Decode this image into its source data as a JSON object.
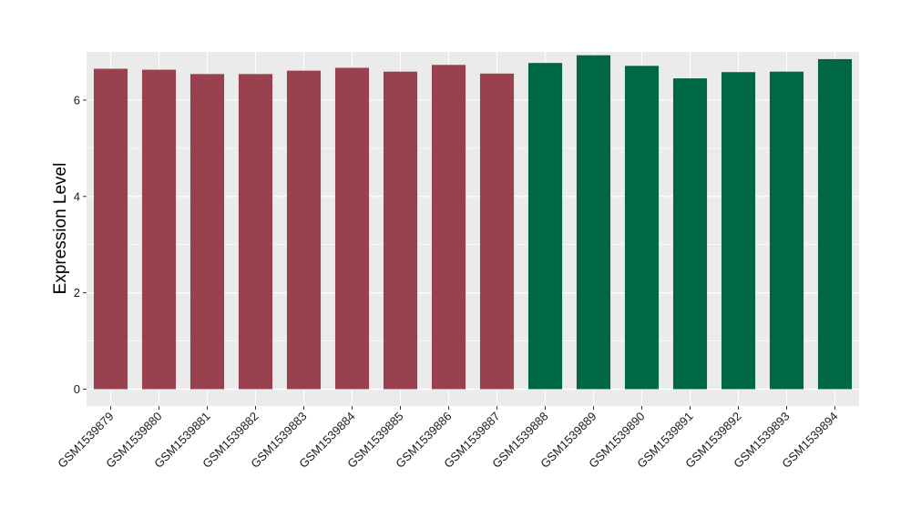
{
  "chart_data": {
    "type": "bar",
    "title": "",
    "xlabel": "",
    "ylabel": "Expression Level",
    "ylim": [
      -0.35,
      7.0
    ],
    "yticks": [
      0,
      2,
      4,
      6
    ],
    "grid": true,
    "legend": "none",
    "categories": [
      "GSM1539879",
      "GSM1539880",
      "GSM1539881",
      "GSM1539882",
      "GSM1539883",
      "GSM1539884",
      "GSM1539885",
      "GSM1539886",
      "GSM1539887",
      "GSM1539888",
      "GSM1539889",
      "GSM1539890",
      "GSM1539891",
      "GSM1539892",
      "GSM1539893",
      "GSM1539894"
    ],
    "values": [
      6.65,
      6.63,
      6.54,
      6.54,
      6.61,
      6.67,
      6.59,
      6.73,
      6.55,
      6.77,
      6.93,
      6.71,
      6.45,
      6.58,
      6.59,
      6.85
    ],
    "groups": [
      0,
      0,
      0,
      0,
      0,
      0,
      0,
      0,
      0,
      1,
      1,
      1,
      1,
      1,
      1,
      1
    ],
    "group_colors": [
      "#9a4150",
      "#006745"
    ],
    "panel_color": "#ebebeb",
    "grid_color": "#ffffff"
  }
}
